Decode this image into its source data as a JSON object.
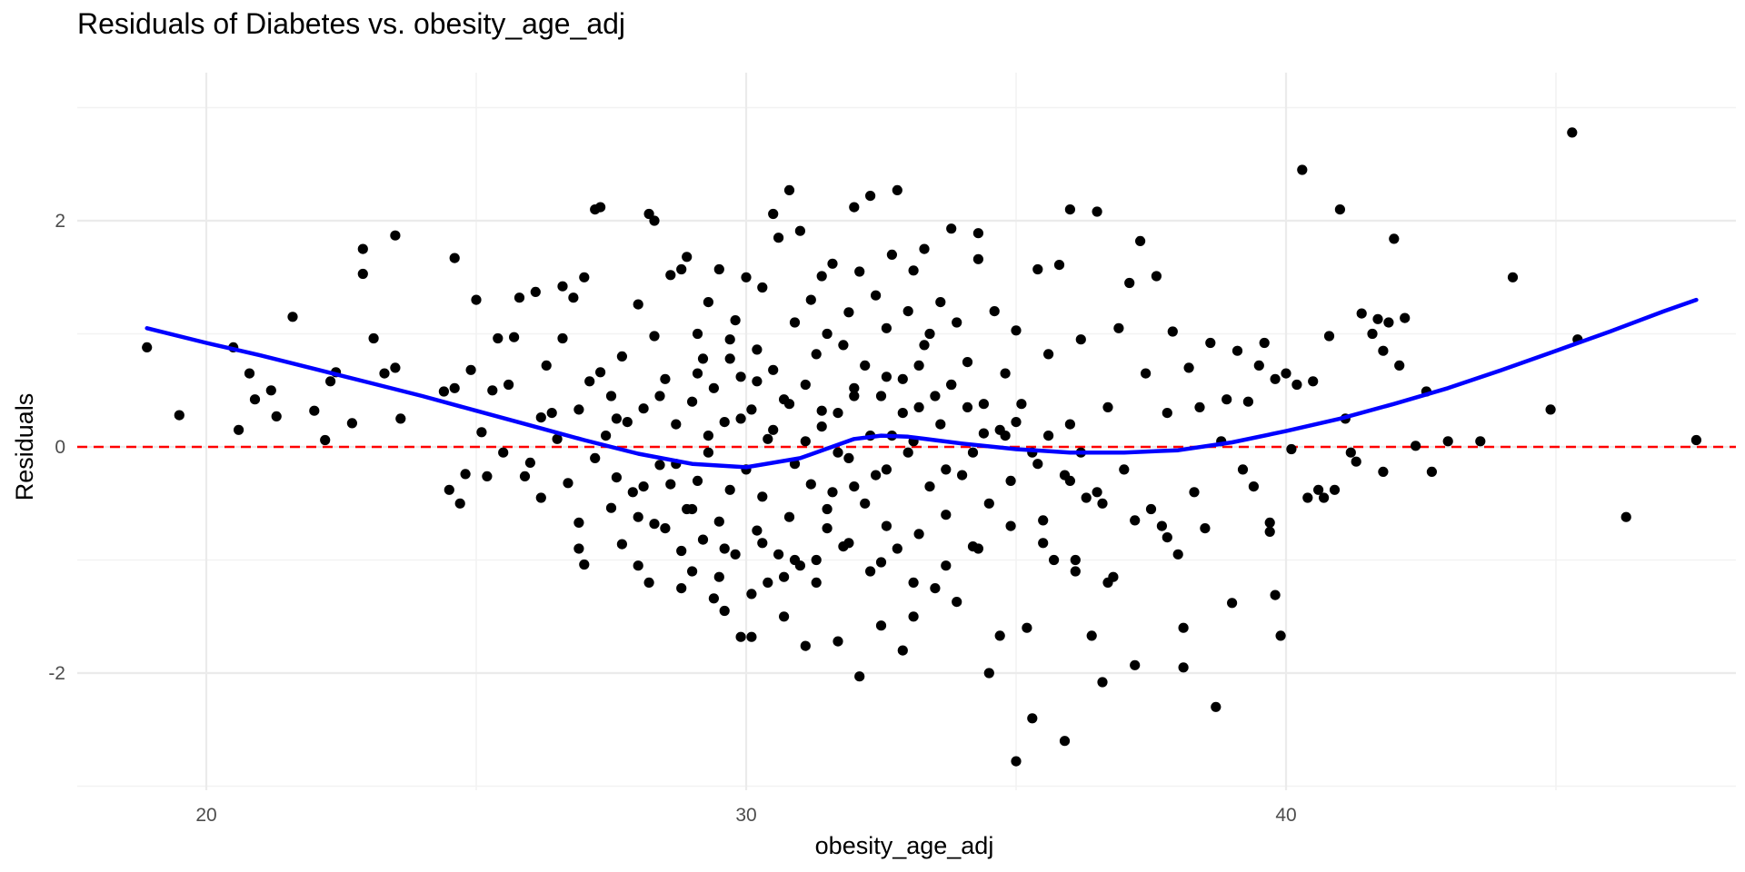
{
  "chart_data": {
    "type": "scatter",
    "title": "Residuals of Diabetes vs. obesity_age_adj",
    "xlabel": "obesity_age_adj",
    "ylabel": "Residuals",
    "xlim": [
      17.2,
      48.7
    ],
    "ylim": [
      -3.0,
      3.2
    ],
    "xticks": [
      20,
      30,
      40
    ],
    "xtick_labels": [
      "20",
      "30",
      "40"
    ],
    "xminor": [
      25,
      35,
      45
    ],
    "yticks": [
      -2,
      0,
      2
    ],
    "ytick_labels": [
      "-2",
      "0",
      "2"
    ],
    "yminor": [
      -3,
      -1,
      1,
      3
    ],
    "grid": true,
    "colors": {
      "points": "#000000",
      "smooth_line": "#0000ff",
      "reference_line": "#ff0000",
      "grid": "#ebebeb"
    },
    "reference_line": {
      "y": 0,
      "style": "dashed"
    },
    "smooth_line": {
      "x": [
        18.9,
        20,
        21,
        22,
        23,
        24,
        25,
        26,
        27,
        28,
        29,
        30,
        31,
        32,
        32.5,
        33,
        34,
        35,
        36,
        37,
        38,
        39,
        40,
        41,
        42,
        43,
        44,
        45,
        46,
        47,
        47.6
      ],
      "y": [
        1.05,
        0.92,
        0.81,
        0.69,
        0.57,
        0.45,
        0.32,
        0.19,
        0.06,
        -0.06,
        -0.15,
        -0.18,
        -0.1,
        0.07,
        0.1,
        0.09,
        0.03,
        -0.02,
        -0.05,
        -0.05,
        -0.03,
        0.04,
        0.14,
        0.25,
        0.38,
        0.52,
        0.68,
        0.85,
        1.02,
        1.2,
        1.3
      ]
    },
    "points": [
      [
        18.9,
        0.88
      ],
      [
        19.5,
        0.28
      ],
      [
        20.5,
        0.88
      ],
      [
        20.6,
        0.15
      ],
      [
        20.8,
        0.65
      ],
      [
        20.9,
        0.42
      ],
      [
        21.2,
        0.5
      ],
      [
        21.3,
        0.27
      ],
      [
        21.6,
        1.15
      ],
      [
        22.0,
        0.32
      ],
      [
        22.2,
        0.06
      ],
      [
        22.3,
        0.58
      ],
      [
        22.4,
        0.66
      ],
      [
        22.7,
        0.21
      ],
      [
        22.9,
        1.75
      ],
      [
        22.9,
        1.53
      ],
      [
        23.1,
        0.96
      ],
      [
        23.3,
        0.65
      ],
      [
        23.5,
        1.87
      ],
      [
        23.5,
        0.7
      ],
      [
        23.6,
        0.25
      ],
      [
        24.4,
        0.49
      ],
      [
        24.5,
        -0.38
      ],
      [
        24.6,
        1.67
      ],
      [
        24.6,
        0.52
      ],
      [
        24.7,
        -0.5
      ],
      [
        24.8,
        -0.24
      ],
      [
        24.9,
        0.68
      ],
      [
        25.0,
        1.3
      ],
      [
        25.1,
        0.13
      ],
      [
        25.2,
        -0.26
      ],
      [
        25.3,
        0.5
      ],
      [
        25.4,
        0.96
      ],
      [
        25.5,
        -0.05
      ],
      [
        25.6,
        0.55
      ],
      [
        25.7,
        0.97
      ],
      [
        25.8,
        1.32
      ],
      [
        25.9,
        -0.26
      ],
      [
        26.0,
        -0.14
      ],
      [
        26.1,
        1.37
      ],
      [
        26.2,
        -0.45
      ],
      [
        26.2,
        0.26
      ],
      [
        26.3,
        0.72
      ],
      [
        26.4,
        0.3
      ],
      [
        26.5,
        0.07
      ],
      [
        26.6,
        1.42
      ],
      [
        26.6,
        0.96
      ],
      [
        26.7,
        -0.32
      ],
      [
        26.8,
        1.32
      ],
      [
        26.9,
        -0.67
      ],
      [
        26.9,
        0.33
      ],
      [
        27.0,
        1.5
      ],
      [
        27.0,
        -1.04
      ],
      [
        27.1,
        0.58
      ],
      [
        27.2,
        2.1
      ],
      [
        27.2,
        -0.1
      ],
      [
        27.3,
        0.66
      ],
      [
        27.3,
        2.12
      ],
      [
        27.4,
        0.1
      ],
      [
        27.5,
        -0.54
      ],
      [
        27.5,
        0.45
      ],
      [
        27.6,
        -0.27
      ],
      [
        27.7,
        0.8
      ],
      [
        27.7,
        -0.86
      ],
      [
        27.8,
        0.22
      ],
      [
        27.9,
        -0.4
      ],
      [
        28.0,
        -0.62
      ],
      [
        28.0,
        1.26
      ],
      [
        28.1,
        0.34
      ],
      [
        28.2,
        2.06
      ],
      [
        28.2,
        -1.2
      ],
      [
        28.3,
        0.98
      ],
      [
        28.3,
        2.0
      ],
      [
        28.4,
        -0.16
      ],
      [
        28.5,
        0.6
      ],
      [
        28.5,
        -0.72
      ],
      [
        28.6,
        1.52
      ],
      [
        28.6,
        -0.33
      ],
      [
        28.7,
        0.2
      ],
      [
        28.8,
        1.57
      ],
      [
        28.8,
        -0.92
      ],
      [
        28.9,
        1.68
      ],
      [
        28.9,
        -0.55
      ],
      [
        29.0,
        0.4
      ],
      [
        29.0,
        -1.1
      ],
      [
        29.1,
        1.0
      ],
      [
        29.1,
        -0.3
      ],
      [
        29.2,
        0.78
      ],
      [
        29.2,
        -0.82
      ],
      [
        29.3,
        1.28
      ],
      [
        29.3,
        -0.05
      ],
      [
        29.4,
        -1.34
      ],
      [
        29.4,
        0.52
      ],
      [
        29.5,
        1.57
      ],
      [
        29.5,
        -0.66
      ],
      [
        29.6,
        0.22
      ],
      [
        29.6,
        -1.45
      ],
      [
        29.7,
        0.95
      ],
      [
        29.7,
        -0.38
      ],
      [
        29.8,
        1.12
      ],
      [
        29.8,
        -0.95
      ],
      [
        29.9,
        0.62
      ],
      [
        29.9,
        -1.68
      ],
      [
        30.0,
        1.5
      ],
      [
        30.0,
        -0.2
      ],
      [
        30.1,
        0.33
      ],
      [
        30.1,
        -1.68
      ],
      [
        30.2,
        0.86
      ],
      [
        30.2,
        -0.74
      ],
      [
        30.3,
        1.41
      ],
      [
        30.3,
        -0.44
      ],
      [
        30.4,
        0.07
      ],
      [
        30.4,
        -1.2
      ],
      [
        30.5,
        2.06
      ],
      [
        30.5,
        0.68
      ],
      [
        30.6,
        -0.95
      ],
      [
        30.6,
        1.85
      ],
      [
        30.7,
        0.42
      ],
      [
        30.7,
        -1.5
      ],
      [
        30.8,
        2.27
      ],
      [
        30.8,
        -0.62
      ],
      [
        30.9,
        1.1
      ],
      [
        30.9,
        -0.15
      ],
      [
        31.0,
        1.91
      ],
      [
        31.0,
        -1.05
      ],
      [
        31.1,
        0.55
      ],
      [
        31.1,
        -1.76
      ],
      [
        31.2,
        1.3
      ],
      [
        31.2,
        -0.33
      ],
      [
        31.3,
        0.82
      ],
      [
        31.3,
        -1.2
      ],
      [
        31.4,
        1.51
      ],
      [
        31.4,
        0.18
      ],
      [
        31.5,
        -0.72
      ],
      [
        31.5,
        1.0
      ],
      [
        31.6,
        -0.4
      ],
      [
        31.6,
        1.62
      ],
      [
        31.7,
        0.3
      ],
      [
        31.7,
        -1.72
      ],
      [
        31.8,
        0.9
      ],
      [
        31.8,
        -0.88
      ],
      [
        31.9,
        1.19
      ],
      [
        31.9,
        -0.1
      ],
      [
        32.0,
        2.12
      ],
      [
        32.0,
        0.52
      ],
      [
        32.1,
        -2.03
      ],
      [
        32.1,
        1.55
      ],
      [
        32.2,
        -0.5
      ],
      [
        32.2,
        0.72
      ],
      [
        32.3,
        2.22
      ],
      [
        32.3,
        -1.1
      ],
      [
        32.4,
        1.34
      ],
      [
        32.4,
        -0.25
      ],
      [
        32.5,
        0.45
      ],
      [
        32.5,
        -1.58
      ],
      [
        32.6,
        1.05
      ],
      [
        32.6,
        -0.7
      ],
      [
        32.7,
        0.1
      ],
      [
        32.7,
        1.7
      ],
      [
        32.8,
        2.27
      ],
      [
        32.8,
        -0.9
      ],
      [
        32.9,
        0.6
      ],
      [
        32.9,
        -1.8
      ],
      [
        33.0,
        1.2
      ],
      [
        33.0,
        -0.05
      ],
      [
        33.1,
        1.56
      ],
      [
        33.1,
        -1.5
      ],
      [
        33.2,
        0.35
      ],
      [
        33.2,
        -0.77
      ],
      [
        33.3,
        1.75
      ],
      [
        33.3,
        0.9
      ],
      [
        33.4,
        -0.35
      ],
      [
        33.4,
        1.0
      ],
      [
        33.5,
        -1.25
      ],
      [
        33.6,
        1.28
      ],
      [
        33.6,
        0.2
      ],
      [
        33.7,
        -0.6
      ],
      [
        33.8,
        1.93
      ],
      [
        33.8,
        0.55
      ],
      [
        33.9,
        -1.37
      ],
      [
        33.9,
        1.1
      ],
      [
        34.0,
        -0.25
      ],
      [
        34.1,
        0.75
      ],
      [
        34.2,
        -0.88
      ],
      [
        34.3,
        1.89
      ],
      [
        34.3,
        1.66
      ],
      [
        34.4,
        0.12
      ],
      [
        34.5,
        -2.0
      ],
      [
        34.5,
        -0.5
      ],
      [
        34.6,
        1.2
      ],
      [
        34.7,
        -1.67
      ],
      [
        34.8,
        0.65
      ],
      [
        34.9,
        -0.3
      ],
      [
        35.0,
        -2.78
      ],
      [
        35.0,
        1.03
      ],
      [
        35.1,
        0.38
      ],
      [
        35.2,
        -1.6
      ],
      [
        35.3,
        -2.4
      ],
      [
        35.4,
        1.57
      ],
      [
        35.5,
        -0.65
      ],
      [
        35.6,
        0.82
      ],
      [
        35.7,
        -1.0
      ],
      [
        35.8,
        1.61
      ],
      [
        35.9,
        -2.6
      ],
      [
        36.0,
        2.1
      ],
      [
        36.0,
        0.2
      ],
      [
        36.1,
        -1.1
      ],
      [
        36.2,
        0.95
      ],
      [
        36.3,
        -0.45
      ],
      [
        36.4,
        -1.67
      ],
      [
        36.5,
        2.08
      ],
      [
        36.6,
        -2.08
      ],
      [
        36.7,
        0.35
      ],
      [
        36.8,
        -1.15
      ],
      [
        36.9,
        1.05
      ],
      [
        37.0,
        -0.2
      ],
      [
        37.1,
        1.45
      ],
      [
        37.2,
        -1.93
      ],
      [
        37.3,
        1.82
      ],
      [
        37.4,
        0.65
      ],
      [
        37.5,
        -0.55
      ],
      [
        37.6,
        1.51
      ],
      [
        37.7,
        -0.7
      ],
      [
        37.8,
        0.3
      ],
      [
        37.9,
        1.02
      ],
      [
        38.0,
        -0.95
      ],
      [
        38.1,
        -1.6
      ],
      [
        38.1,
        -1.95
      ],
      [
        38.2,
        0.7
      ],
      [
        38.3,
        -0.4
      ],
      [
        38.4,
        0.35
      ],
      [
        38.5,
        -0.72
      ],
      [
        38.6,
        0.92
      ],
      [
        38.7,
        -2.3
      ],
      [
        38.8,
        0.05
      ],
      [
        38.9,
        0.42
      ],
      [
        39.0,
        -1.38
      ],
      [
        39.1,
        0.85
      ],
      [
        39.2,
        -0.2
      ],
      [
        39.3,
        0.4
      ],
      [
        39.4,
        -0.35
      ],
      [
        39.5,
        0.72
      ],
      [
        39.6,
        0.92
      ],
      [
        39.7,
        -0.75
      ],
      [
        39.7,
        -0.67
      ],
      [
        39.8,
        -1.31
      ],
      [
        39.8,
        0.6
      ],
      [
        39.9,
        -1.67
      ],
      [
        40.0,
        0.65
      ],
      [
        40.1,
        -0.02
      ],
      [
        40.2,
        0.55
      ],
      [
        40.3,
        2.45
      ],
      [
        40.4,
        -0.45
      ],
      [
        40.5,
        0.58
      ],
      [
        40.6,
        -0.38
      ],
      [
        40.7,
        -0.45
      ],
      [
        40.8,
        0.98
      ],
      [
        40.9,
        -0.38
      ],
      [
        41.0,
        2.1
      ],
      [
        41.1,
        0.25
      ],
      [
        41.2,
        -0.05
      ],
      [
        41.3,
        -0.13
      ],
      [
        41.4,
        1.18
      ],
      [
        41.6,
        1.0
      ],
      [
        41.7,
        1.13
      ],
      [
        41.8,
        0.85
      ],
      [
        41.8,
        -0.22
      ],
      [
        41.9,
        1.1
      ],
      [
        42.0,
        1.84
      ],
      [
        42.1,
        0.72
      ],
      [
        42.2,
        1.14
      ],
      [
        42.4,
        0.01
      ],
      [
        42.6,
        0.49
      ],
      [
        42.7,
        -0.22
      ],
      [
        43.0,
        0.05
      ],
      [
        43.6,
        0.05
      ],
      [
        44.2,
        1.5
      ],
      [
        44.9,
        0.33
      ],
      [
        45.3,
        2.78
      ],
      [
        45.4,
        0.95
      ],
      [
        46.3,
        -0.62
      ],
      [
        47.6,
        0.06
      ],
      [
        26.9,
        -0.9
      ],
      [
        28.3,
        -0.68
      ],
      [
        29.0,
        -0.55
      ],
      [
        29.6,
        -0.9
      ],
      [
        30.3,
        -0.85
      ],
      [
        30.9,
        -1.0
      ],
      [
        31.5,
        -0.55
      ],
      [
        32.0,
        -0.35
      ],
      [
        32.6,
        -0.2
      ],
      [
        33.1,
        0.05
      ],
      [
        33.7,
        -0.2
      ],
      [
        34.2,
        -0.05
      ],
      [
        34.8,
        0.1
      ],
      [
        35.4,
        -0.15
      ],
      [
        36.0,
        -0.3
      ],
      [
        36.6,
        -0.5
      ],
      [
        37.2,
        -0.65
      ],
      [
        37.8,
        -0.8
      ],
      [
        28.1,
        -0.35
      ],
      [
        28.7,
        -0.15
      ],
      [
        29.3,
        0.1
      ],
      [
        29.9,
        0.25
      ],
      [
        30.5,
        0.15
      ],
      [
        31.1,
        0.05
      ],
      [
        31.7,
        -0.05
      ],
      [
        32.3,
        0.1
      ],
      [
        32.9,
        0.3
      ],
      [
        33.5,
        0.45
      ],
      [
        34.1,
        0.35
      ],
      [
        34.7,
        0.15
      ],
      [
        35.3,
        -0.05
      ],
      [
        35.9,
        -0.25
      ],
      [
        36.5,
        -0.4
      ],
      [
        27.6,
        0.25
      ],
      [
        28.4,
        0.45
      ],
      [
        29.1,
        0.65
      ],
      [
        29.7,
        0.78
      ],
      [
        30.2,
        0.58
      ],
      [
        30.8,
        0.38
      ],
      [
        31.4,
        0.32
      ],
      [
        32.0,
        0.45
      ],
      [
        32.6,
        0.62
      ],
      [
        33.2,
        0.72
      ],
      [
        33.8,
        0.55
      ],
      [
        34.4,
        0.38
      ],
      [
        35.0,
        0.22
      ],
      [
        35.6,
        0.1
      ],
      [
        36.2,
        -0.05
      ],
      [
        28.0,
        -1.05
      ],
      [
        28.8,
        -1.25
      ],
      [
        29.5,
        -1.15
      ],
      [
        30.1,
        -1.3
      ],
      [
        30.7,
        -1.15
      ],
      [
        31.3,
        -1.0
      ],
      [
        31.9,
        -0.85
      ],
      [
        32.5,
        -1.02
      ],
      [
        33.1,
        -1.2
      ],
      [
        33.7,
        -1.05
      ],
      [
        34.3,
        -0.9
      ],
      [
        34.9,
        -0.7
      ],
      [
        35.5,
        -0.85
      ],
      [
        36.1,
        -1.0
      ],
      [
        36.7,
        -1.2
      ]
    ]
  }
}
